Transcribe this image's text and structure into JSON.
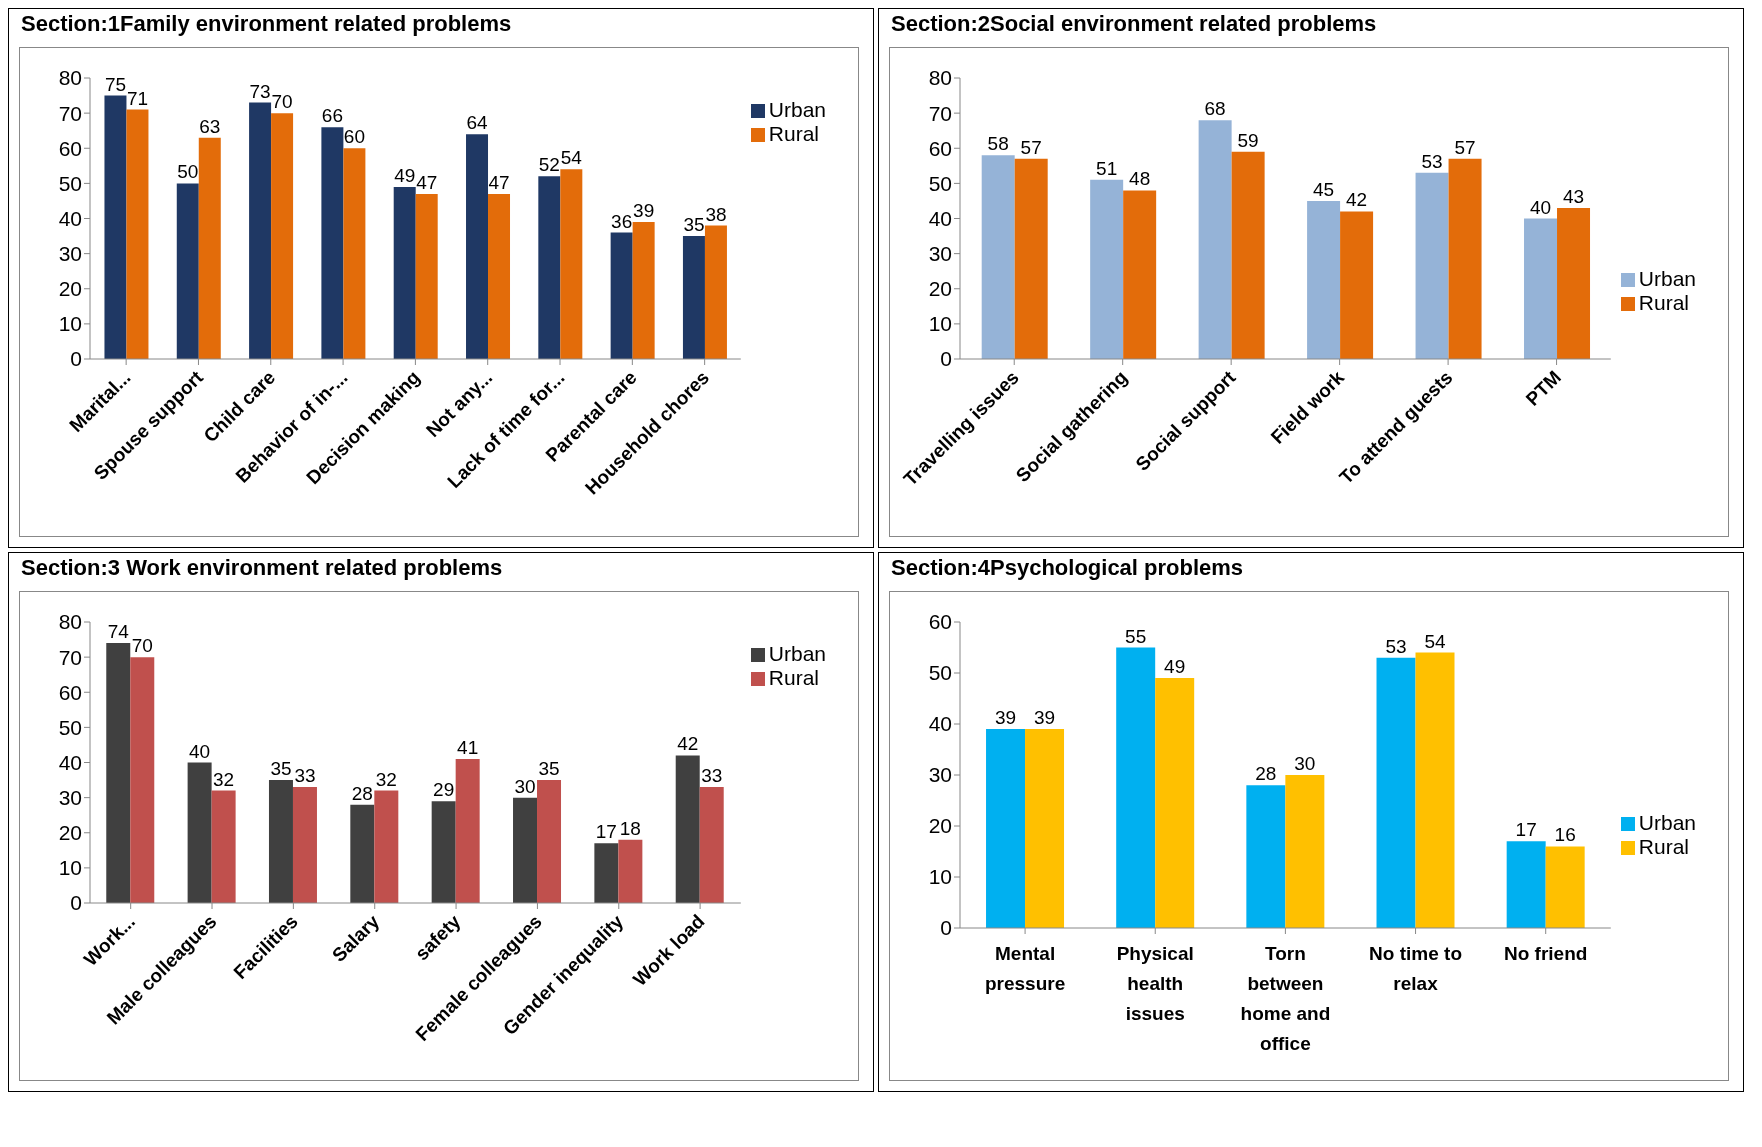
{
  "chart_data": [
    {
      "type": "bar",
      "title": "Section:1Family environment related problems",
      "categories": [
        "Marital...",
        "Spouse support",
        "Child care",
        "Behavior of in-...",
        "Decision making",
        "Not any...",
        "Lack of time for...",
        "Parental care",
        "Household chores"
      ],
      "series": [
        {
          "name": "Urban",
          "color": "#1f3864",
          "values": [
            75,
            50,
            73,
            66,
            49,
            64,
            52,
            36,
            35
          ]
        },
        {
          "name": "Rural",
          "color": "#e36c0a",
          "values": [
            71,
            63,
            70,
            60,
            47,
            47,
            54,
            39,
            38
          ]
        }
      ],
      "ylim": [
        0,
        80
      ],
      "yticks": [
        0,
        10,
        20,
        30,
        40,
        50,
        60,
        70,
        80
      ],
      "grid": false,
      "legend": "top right",
      "data_labels": true
    },
    {
      "type": "bar",
      "title": "Section:2Social environment related problems",
      "categories": [
        "Travelling issues",
        "Social  gathering",
        "Social support",
        "Field work",
        "To attend guests",
        "PTM"
      ],
      "series": [
        {
          "name": "Urban",
          "color": "#95b3d7",
          "values": [
            58,
            51,
            68,
            45,
            53,
            40
          ]
        },
        {
          "name": "Rural",
          "color": "#e36c0a",
          "values": [
            57,
            48,
            59,
            42,
            57,
            43
          ]
        }
      ],
      "ylim": [
        0,
        80
      ],
      "yticks": [
        0,
        10,
        20,
        30,
        40,
        50,
        60,
        70,
        80
      ],
      "grid": false,
      "legend": "right",
      "data_labels": true
    },
    {
      "type": "bar",
      "title": "Section:3 Work environment related problems",
      "categories": [
        "Work...",
        "Male colleagues",
        "Facilities",
        "Salary",
        "safety",
        "Female colleagues",
        "Gender inequality",
        "Work load"
      ],
      "series": [
        {
          "name": "Urban",
          "color": "#404040",
          "values": [
            74,
            40,
            35,
            28,
            29,
            30,
            17,
            42
          ]
        },
        {
          "name": "Rural",
          "color": "#c0504d",
          "values": [
            70,
            32,
            33,
            32,
            41,
            35,
            18,
            33
          ]
        }
      ],
      "ylim": [
        0,
        80
      ],
      "yticks": [
        0,
        10,
        20,
        30,
        40,
        50,
        60,
        70,
        80
      ],
      "grid": false,
      "legend": "top right",
      "data_labels": true
    },
    {
      "type": "bar",
      "title": "Section:4Psychological problems",
      "categories": [
        "Mental pressure",
        "Physical health issues",
        "Torn between home and office",
        "No time to relax",
        "No friend"
      ],
      "series": [
        {
          "name": "Urban",
          "color": "#00b0f0",
          "values": [
            39,
            55,
            28,
            53,
            17
          ]
        },
        {
          "name": "Rural",
          "color": "#ffc000",
          "values": [
            39,
            49,
            30,
            54,
            16
          ]
        }
      ],
      "ylim": [
        0,
        60
      ],
      "yticks": [
        0,
        10,
        20,
        30,
        40,
        50,
        60
      ],
      "grid": false,
      "legend": "right",
      "data_labels": true
    }
  ]
}
